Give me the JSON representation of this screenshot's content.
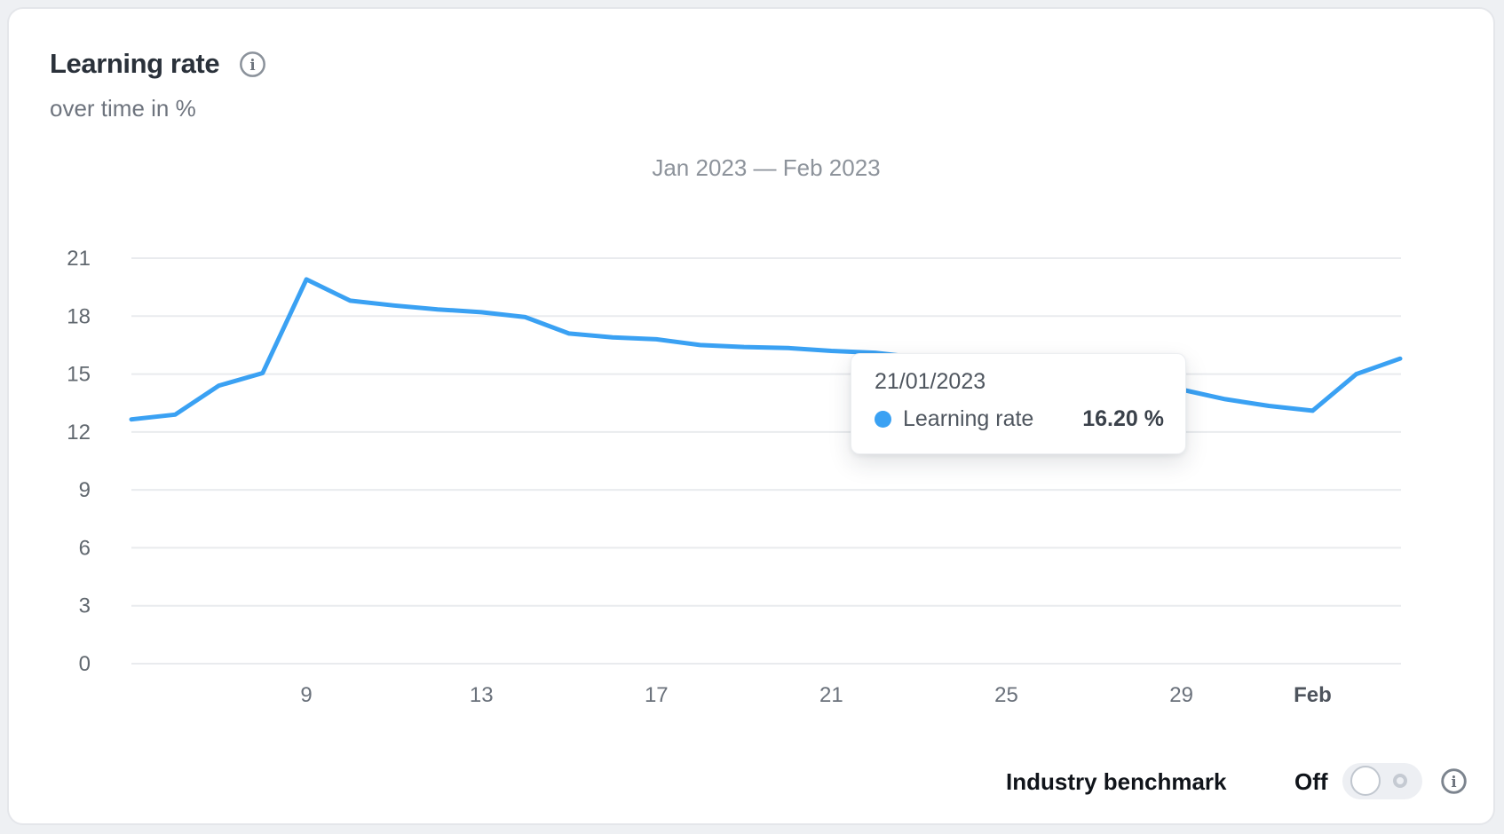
{
  "card": {
    "title": "Learning rate",
    "subtitle": "over time in %"
  },
  "icons": {
    "info_glyph": "i"
  },
  "chart_data": {
    "type": "line",
    "title": "Jan 2023 — Feb 2023",
    "ylim": [
      0,
      21
    ],
    "yticks": [
      0,
      3,
      6,
      9,
      12,
      15,
      18,
      21
    ],
    "grid": true,
    "legend": false,
    "xticks": [
      {
        "label": "9",
        "day": 9,
        "bold": false
      },
      {
        "label": "13",
        "day": 13,
        "bold": false
      },
      {
        "label": "17",
        "day": 17,
        "bold": false
      },
      {
        "label": "21",
        "day": 21,
        "bold": false
      },
      {
        "label": "25",
        "day": 25,
        "bold": false
      },
      {
        "label": "29",
        "day": 29,
        "bold": false
      },
      {
        "label": "Feb",
        "day": 32,
        "bold": true
      }
    ],
    "series": [
      {
        "name": "Learning rate",
        "color": "#3aa1f3",
        "unit": "%",
        "dates": [
          "05/01/2023",
          "06/01/2023",
          "07/01/2023",
          "08/01/2023",
          "09/01/2023",
          "10/01/2023",
          "11/01/2023",
          "12/01/2023",
          "13/01/2023",
          "14/01/2023",
          "15/01/2023",
          "16/01/2023",
          "17/01/2023",
          "18/01/2023",
          "19/01/2023",
          "20/01/2023",
          "21/01/2023",
          "22/01/2023",
          "23/01/2023",
          "24/01/2023",
          "25/01/2023",
          "26/01/2023",
          "27/01/2023",
          "28/01/2023",
          "29/01/2023",
          "30/01/2023",
          "31/01/2023",
          "01/02/2023",
          "02/02/2023",
          "03/02/2023"
        ],
        "days": [
          5,
          6,
          7,
          8,
          9,
          10,
          11,
          12,
          13,
          14,
          15,
          16,
          17,
          18,
          19,
          20,
          21,
          22,
          23,
          24,
          25,
          26,
          27,
          28,
          29,
          30,
          31,
          32,
          33,
          34
        ],
        "values": [
          12.65,
          12.9,
          14.4,
          15.05,
          19.9,
          18.8,
          18.55,
          18.35,
          18.2,
          17.95,
          17.1,
          16.9,
          16.8,
          16.5,
          16.4,
          16.35,
          16.2,
          16.1,
          15.85,
          15.6,
          15.35,
          15.1,
          14.8,
          14.5,
          14.2,
          13.7,
          13.35,
          13.1,
          15.0,
          15.8
        ]
      }
    ]
  },
  "tooltip": {
    "date": "21/01/2023",
    "series": "Learning rate",
    "value": "16.20 %",
    "marker_color": "#3aa1f3"
  },
  "benchmark": {
    "label": "Industry benchmark",
    "state": "Off",
    "toggle_on": false
  }
}
